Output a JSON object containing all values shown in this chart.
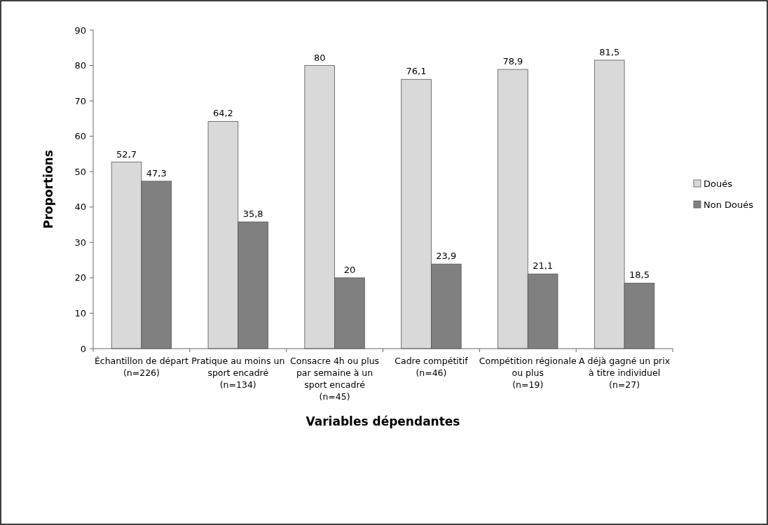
{
  "chart_data": {
    "type": "bar",
    "xlabel": "Variables dépendantes",
    "ylabel": "Proportions",
    "categories": [
      "Échantillon de départ (n=226)",
      "Pratique au moins un sport encadré (n=134)",
      "Consacre 4h ou plus par semaine à un sport encadré (n=45)",
      "Cadre compétitif (n=46)",
      "Compétition régionale ou plus (n=19)",
      "A déjà gagné un prix à titre individuel (n=27)"
    ],
    "series": [
      {
        "name": "Doués",
        "color": "#d9d9d9",
        "values": [
          52.7,
          64.2,
          80,
          76.1,
          78.9,
          81.5
        ],
        "value_labels": [
          "52,7",
          "64,2",
          "80",
          "76,1",
          "78,9",
          "81,5"
        ]
      },
      {
        "name": "Non Doués",
        "color": "#808080",
        "values": [
          47.3,
          35.8,
          20,
          23.9,
          21.1,
          18.5
        ],
        "value_labels": [
          "47,3",
          "35,8",
          "20",
          "23,9",
          "21,1",
          "18,5"
        ]
      }
    ],
    "ylim": [
      0,
      90
    ],
    "yticks": [
      0,
      10,
      20,
      30,
      40,
      50,
      60,
      70,
      80,
      90
    ],
    "grid": false,
    "legend": "right"
  }
}
